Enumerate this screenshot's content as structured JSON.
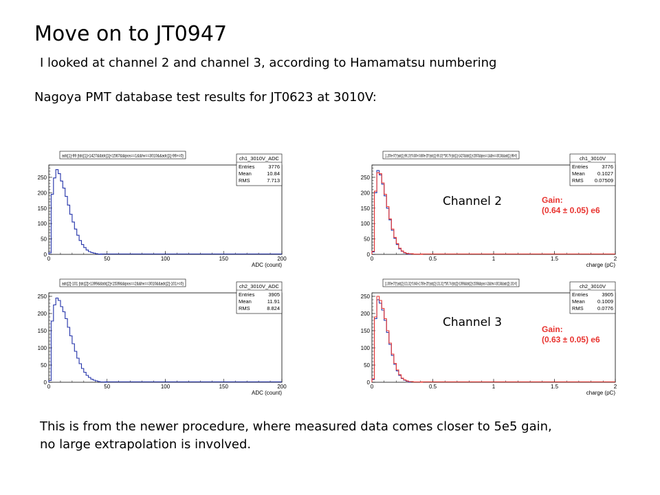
{
  "slide": {
    "title": "Move on to JT0947",
    "line1": "I looked at channel 2 and channel 3, according to Hamamatsu numbering",
    "line2": "Nagoya PMT database test results for JT0623 at 3010V:",
    "note_line1": "This is from the newer procedure, where measured data comes closer to 5e5 gain,",
    "note_line2": "no large extrapolation is involved.",
    "channel2_label": "Channel 2",
    "channel3_label": "Channel 3",
    "gain_label": "Gain:",
    "gain2_value": "(0.64 ± 0.05) e6",
    "gain3_value": "(0.63 ± 0.05) e6"
  },
  "colors": {
    "adc_line": "#1f2fa8",
    "charge_red": "#e8322e",
    "charge_blue": "#1f2fa8"
  },
  "chart_data": [
    {
      "type": "line",
      "title": "adc[1]-99 {tdc[1]>1427&&tdc[1]<1567&&ipos==1&&hv==3010&&adc[1]-99>=0}",
      "stats_title": "ch1_3010V_ADC",
      "stats": [
        [
          "Entries",
          "3776"
        ],
        [
          "Mean",
          "10.84"
        ],
        [
          "RMS",
          "7.713"
        ]
      ],
      "xlabel": "ADC (count)",
      "ylabel": "",
      "xlim": [
        0,
        200
      ],
      "ylim": [
        0,
        290
      ],
      "xticks": [
        0,
        50,
        100,
        150,
        200
      ],
      "yticks": [
        0,
        50,
        100,
        150,
        200,
        250
      ],
      "series": [
        {
          "color": "#1f2fa8",
          "x": [
            0,
            2,
            4,
            6,
            8,
            10,
            12,
            14,
            16,
            18,
            20,
            22,
            24,
            26,
            28,
            30,
            32,
            34,
            36,
            38,
            40,
            42,
            44
          ],
          "y": [
            5,
            195,
            248,
            275,
            262,
            238,
            215,
            188,
            160,
            130,
            105,
            82,
            62,
            45,
            32,
            22,
            14,
            9,
            6,
            4,
            2,
            1,
            0
          ]
        }
      ]
    },
    {
      "type": "line",
      "title": "(1.200e-07)*(adc[1]-99.10)*0.830+0.880e-25*(adc[1]-99.10)**5/0.79 {tdc[1]>1427&&tdc[1]<1567&&ipos==1&&hv==3010&&adc[1]-99>0}",
      "stats_title": "ch1_3010V",
      "stats": [
        [
          "Entries",
          "3776"
        ],
        [
          "Mean",
          "0.1027"
        ],
        [
          "RMS",
          "0.07509"
        ]
      ],
      "xlabel": "charge (pC)",
      "ylabel": "",
      "xlim": [
        0,
        2
      ],
      "ylim": [
        0,
        290
      ],
      "xticks": [
        0,
        0.5,
        1,
        1.5,
        2
      ],
      "yticks": [
        0,
        50,
        100,
        150,
        200,
        250
      ],
      "series": [
        {
          "color": "#1f2fa8",
          "x": [
            0,
            0.02,
            0.04,
            0.06,
            0.08,
            0.1,
            0.12,
            0.14,
            0.16,
            0.18,
            0.2,
            0.22,
            0.24,
            0.26,
            0.28,
            0.3
          ],
          "y": [
            8,
            200,
            272,
            258,
            228,
            190,
            150,
            112,
            78,
            52,
            32,
            18,
            10,
            5,
            2,
            0
          ]
        },
        {
          "color": "#e8322e",
          "x": [
            0,
            0.02,
            0.04,
            0.06,
            0.08,
            0.1,
            0.12,
            0.14,
            0.16,
            0.18,
            0.2,
            0.22,
            0.24,
            0.26,
            0.28,
            0.3,
            0.34,
            0.4
          ],
          "y": [
            10,
            205,
            265,
            262,
            232,
            195,
            155,
            115,
            82,
            55,
            35,
            20,
            11,
            6,
            3,
            2,
            1,
            0
          ]
        }
      ]
    },
    {
      "type": "line",
      "title": "adc[2]-101 {tdc[2]>1399&&tdc[2]<1539&&ipos==2&&hv==3010&&adc[2]-101>=0}",
      "stats_title": "ch2_3010V_ADC",
      "stats": [
        [
          "Entries",
          "3905"
        ],
        [
          "Mean",
          "11.91"
        ],
        [
          "RMS",
          "8.824"
        ]
      ],
      "xlabel": "ADC (count)",
      "ylabel": "",
      "xlim": [
        0,
        200
      ],
      "ylim": [
        0,
        260
      ],
      "xticks": [
        0,
        50,
        100,
        150,
        200
      ],
      "yticks": [
        0,
        50,
        100,
        150,
        200,
        250
      ],
      "series": [
        {
          "color": "#1f2fa8",
          "x": [
            0,
            2,
            4,
            6,
            8,
            10,
            12,
            14,
            16,
            18,
            20,
            22,
            24,
            26,
            28,
            30,
            32,
            34,
            36,
            38,
            40,
            42,
            44,
            46,
            48
          ],
          "y": [
            5,
            178,
            225,
            245,
            238,
            220,
            205,
            185,
            160,
            135,
            112,
            90,
            70,
            54,
            40,
            29,
            20,
            14,
            9,
            6,
            4,
            2,
            1,
            1,
            0
          ]
        }
      ]
    },
    {
      "type": "line",
      "title": "(1.000e-07)*(adc[2]-101.31)*0.843+2.780e-25*(adc[2]-101.31)**5/0.74 {tdc[2]>1399&&tdc[2]<1539&&ipos==2&&hv==3010&&adc[2]-101>0}",
      "stats_title": "ch2_3010V",
      "stats": [
        [
          "Entries",
          "3905"
        ],
        [
          "Mean",
          "0.1009"
        ],
        [
          "RMS",
          "0.0776"
        ]
      ],
      "xlabel": "charge (pC)",
      "ylabel": "",
      "xlim": [
        0,
        2
      ],
      "ylim": [
        0,
        260
      ],
      "xticks": [
        0,
        0.5,
        1,
        1.5,
        2
      ],
      "yticks": [
        0,
        50,
        100,
        150,
        200,
        250
      ],
      "series": [
        {
          "color": "#1f2fa8",
          "x": [
            0,
            0.02,
            0.04,
            0.06,
            0.08,
            0.1,
            0.12,
            0.14,
            0.16,
            0.18,
            0.2,
            0.22,
            0.24,
            0.26,
            0.28,
            0.3
          ],
          "y": [
            8,
            185,
            240,
            230,
            210,
            180,
            145,
            110,
            78,
            52,
            33,
            20,
            11,
            6,
            3,
            0
          ]
        },
        {
          "color": "#e8322e",
          "x": [
            0,
            0.02,
            0.04,
            0.06,
            0.08,
            0.1,
            0.12,
            0.14,
            0.16,
            0.18,
            0.2,
            0.22,
            0.24,
            0.26,
            0.28,
            0.3,
            0.34,
            0.4
          ],
          "y": [
            10,
            190,
            250,
            238,
            215,
            185,
            150,
            114,
            82,
            55,
            36,
            22,
            12,
            7,
            4,
            2,
            1,
            0
          ]
        }
      ]
    }
  ]
}
